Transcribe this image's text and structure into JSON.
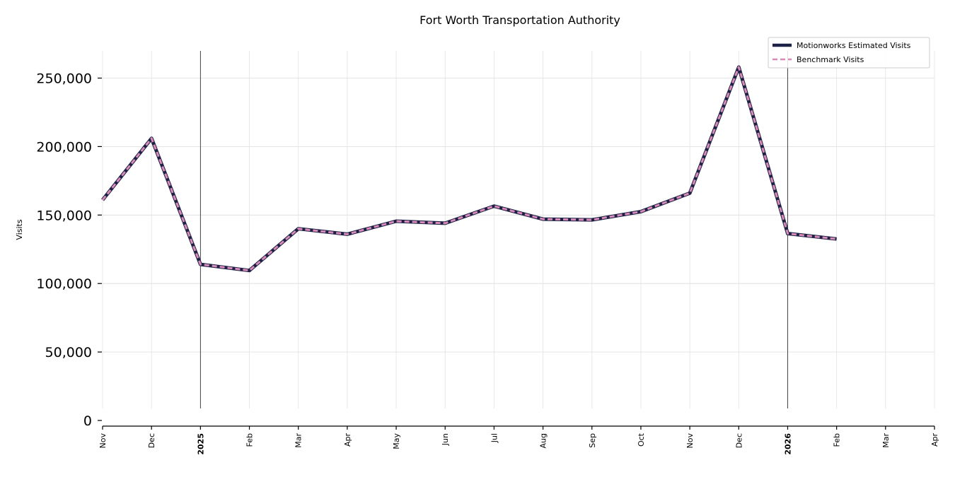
{
  "chart_data": {
    "type": "line",
    "title": "Fort Worth Transportation Authority",
    "xlabel": "",
    "ylabel": "Visits",
    "ylim": [
      0,
      270000
    ],
    "yticks": [
      0,
      50000,
      100000,
      150000,
      200000,
      250000
    ],
    "ytick_labels": [
      "0",
      "50,000",
      "100,000",
      "150,000",
      "200,000",
      "250,000"
    ],
    "xlim": [
      "2024-11",
      "2026-04"
    ],
    "x_ticks": [
      "2024-11",
      "2024-12",
      "2025-01",
      "2025-02",
      "2025-03",
      "2025-04",
      "2025-05",
      "2025-06",
      "2025-07",
      "2025-08",
      "2025-09",
      "2025-10",
      "2025-11",
      "2025-12",
      "2026-01",
      "2026-02",
      "2026-03",
      "2026-04"
    ],
    "x_tick_labels": [
      "Nov",
      "Dec",
      "2025",
      "Feb",
      "Mar",
      "Apr",
      "May",
      "Jun",
      "Jul",
      "Aug",
      "Sep",
      "Oct",
      "Nov",
      "Dec",
      "2026",
      "Feb",
      "Mar",
      "Apr"
    ],
    "year_markers": [
      "2025-01",
      "2026-01"
    ],
    "grid": true,
    "legend_position": "top-right",
    "x": [
      "2024-11",
      "2024-12",
      "2025-01",
      "2025-02",
      "2025-03",
      "2025-04",
      "2025-05",
      "2025-06",
      "2025-07",
      "2025-08",
      "2025-09",
      "2025-10",
      "2025-11",
      "2025-12",
      "2026-01",
      "2026-02"
    ],
    "series": [
      {
        "name": "Motionworks Estimated Visits",
        "color": "#1c2145",
        "style": "solid",
        "values": [
          161000,
          206000,
          114000,
          109500,
          140000,
          136000,
          145500,
          144000,
          156500,
          147000,
          146500,
          152500,
          166000,
          258000,
          136500,
          132500
        ]
      },
      {
        "name": "Benchmark Visits",
        "color": "#d98bb8",
        "style": "dashed",
        "values": [
          161000,
          206000,
          114000,
          109500,
          140000,
          136000,
          145500,
          144000,
          156500,
          147000,
          146500,
          152500,
          166000,
          258000,
          136500,
          132500
        ]
      }
    ]
  }
}
